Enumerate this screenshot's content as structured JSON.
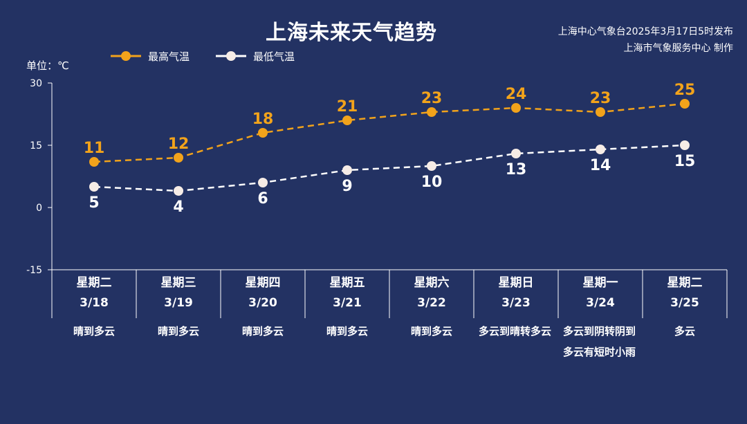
{
  "title": "上海未来天气趋势",
  "publisher": {
    "line1": "上海中心气象台2025年3月17日5时发布",
    "line2": "上海市气象服务中心 制作"
  },
  "unit_label": "单位：℃",
  "colors": {
    "background": "#233263",
    "high": "#f2a31b",
    "low": "#ffffff",
    "low_marker": "#f6ece6"
  },
  "chart_data": {
    "type": "line",
    "categories": [
      "3/18",
      "3/19",
      "3/20",
      "3/21",
      "3/22",
      "3/23",
      "3/24",
      "3/25"
    ],
    "ylim": [
      -15,
      30
    ],
    "yticks": [
      -15,
      0,
      15,
      30
    ],
    "legend_position": "top-left",
    "grid": false,
    "series": [
      {
        "name": "最高气温",
        "values": [
          11,
          12,
          18,
          21,
          23,
          24,
          23,
          25
        ]
      },
      {
        "name": "最低气温",
        "values": [
          5,
          4,
          6,
          9,
          10,
          13,
          14,
          15
        ]
      }
    ]
  },
  "days": [
    {
      "weekday": "星期二",
      "date": "3/18",
      "weather": "晴到多云"
    },
    {
      "weekday": "星期三",
      "date": "3/19",
      "weather": "晴到多云"
    },
    {
      "weekday": "星期四",
      "date": "3/20",
      "weather": "晴到多云"
    },
    {
      "weekday": "星期五",
      "date": "3/21",
      "weather": "晴到多云"
    },
    {
      "weekday": "星期六",
      "date": "3/22",
      "weather": "晴到多云"
    },
    {
      "weekday": "星期日",
      "date": "3/23",
      "weather": "多云到晴转多云"
    },
    {
      "weekday": "星期一",
      "date": "3/24",
      "weather": "多云到阴转阴到多云有短时小雨"
    },
    {
      "weekday": "星期二",
      "date": "3/25",
      "weather": "多云"
    }
  ]
}
